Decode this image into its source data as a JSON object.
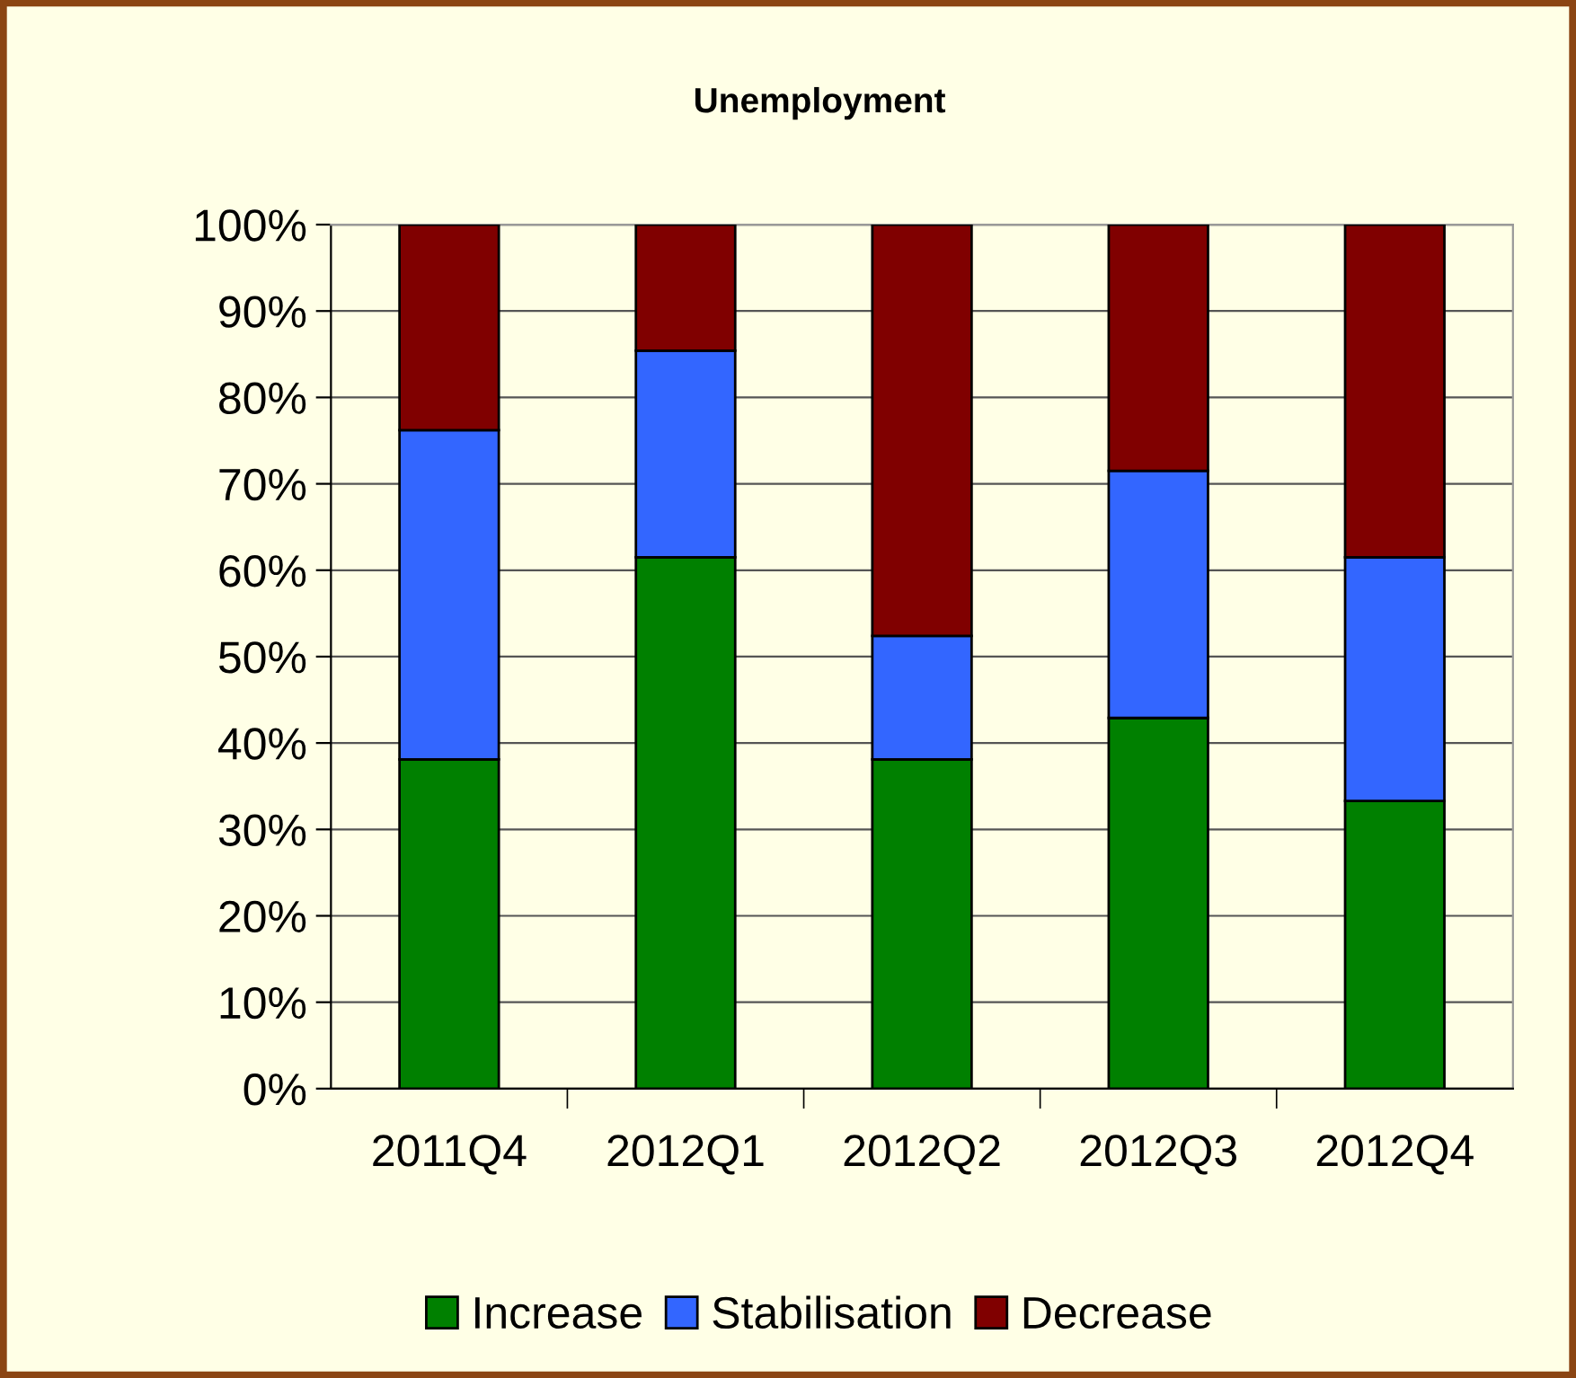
{
  "chart_data": {
    "type": "bar",
    "title": "Unemployment",
    "stacked": true,
    "categories": [
      "2011Q4",
      "2012Q1",
      "2012Q2",
      "2012Q3",
      "2012Q4"
    ],
    "series": [
      {
        "name": "Increase",
        "color": "#008000",
        "values": [
          38.1,
          61.5,
          38.1,
          42.9,
          33.3
        ]
      },
      {
        "name": "Stabilisation",
        "color": "#3366ff",
        "values": [
          38.1,
          23.9,
          14.3,
          28.6,
          28.2
        ]
      },
      {
        "name": "Decrease",
        "color": "#800000",
        "values": [
          23.8,
          14.6,
          47.6,
          28.5,
          38.5
        ]
      }
    ],
    "ylim": [
      0,
      100
    ],
    "yticks": [
      {
        "value": 0,
        "label": "0%"
      },
      {
        "value": 10,
        "label": "10%"
      },
      {
        "value": 20,
        "label": "20%"
      },
      {
        "value": 30,
        "label": "30%"
      },
      {
        "value": 40,
        "label": "40%"
      },
      {
        "value": 50,
        "label": "50%"
      },
      {
        "value": 60,
        "label": "60%"
      },
      {
        "value": 70,
        "label": "70%"
      },
      {
        "value": 80,
        "label": "80%"
      },
      {
        "value": 90,
        "label": "90%"
      },
      {
        "value": 100,
        "label": "100%"
      }
    ],
    "grid": "y",
    "legend": "bottom"
  }
}
